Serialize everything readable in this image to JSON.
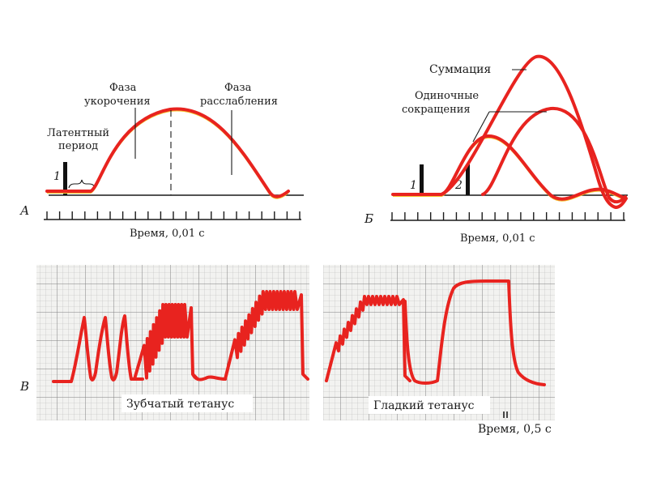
{
  "panel_a": {
    "letter": "А",
    "latent_label_1": "Латентный",
    "latent_label_2": "период",
    "shortening_label_1": "Фаза",
    "shortening_label_2": "укорочения",
    "relaxation_label_1": "Фаза",
    "relaxation_label_2": "расслабления",
    "stimulus_number": "1",
    "time_axis_label": "Время, 0,01 с"
  },
  "panel_b": {
    "letter": "Б",
    "summation_label": "Суммация",
    "single_label_1": "Одиночные",
    "single_label_2": "сокращения",
    "stimulus_1": "1",
    "stimulus_2": "2",
    "time_axis_label": "Время, 0,01 с"
  },
  "panel_c": {
    "letter": "В",
    "jagged_label": "Зубчатый тетанус",
    "smooth_label": "Гладкий тетанус",
    "time_label": "Время, 0,5 с"
  },
  "colors": {
    "curve": "#e8231f",
    "curve_edge": "#f4c430",
    "grid_minor": "#b9b9b9",
    "grid_major": "#7f7f7f",
    "paper": "#f2f2f0"
  }
}
